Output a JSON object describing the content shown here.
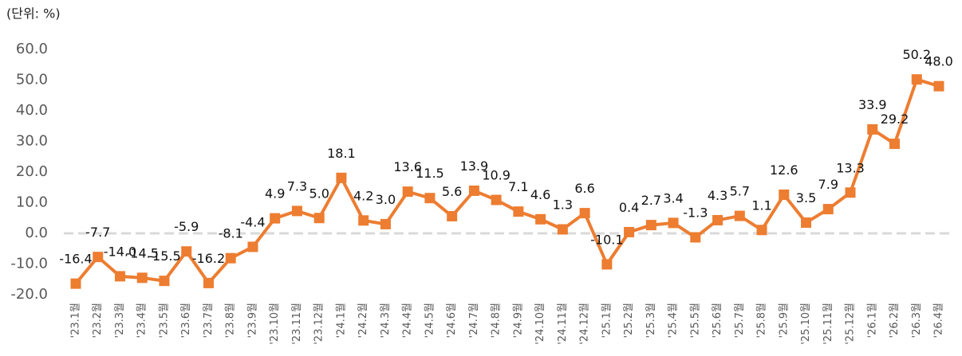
{
  "chart_data": {
    "type": "line",
    "unit_label": "(단위: %)",
    "categories": [
      "'23.1월",
      "'23.2월",
      "'23.3월",
      "'23.4월",
      "'23.5월",
      "'23.6월",
      "'23.7월",
      "'23.8월",
      "'23.9월",
      "'23.10월",
      "'23.11월",
      "'23.12월",
      "'24.1월",
      "'24.2월",
      "'24.3월",
      "'24.4월",
      "'24.5월",
      "'24.6월",
      "'24.7월",
      "'24.8월",
      "'24.9월",
      "'24.10월",
      "'24.11월",
      "'24.12월",
      "'25.1월",
      "'25.2월",
      "'25.3월",
      "'25.4월",
      "'25.5월",
      "'25.6월",
      "'25.7월",
      "'25.8월",
      "'25.9월",
      "'25.10월",
      "'25.11월",
      "'25.12월",
      "'26.1월",
      "'26.2월",
      "'26.3월",
      "'26.4월"
    ],
    "values": [
      -16.4,
      -7.7,
      -14.0,
      -14.5,
      -15.5,
      -5.9,
      -16.2,
      -8.1,
      -4.4,
      4.9,
      7.3,
      5.0,
      18.1,
      4.2,
      3.0,
      13.6,
      11.5,
      5.6,
      13.9,
      10.9,
      7.1,
      4.6,
      1.3,
      6.6,
      -10.1,
      0.4,
      2.7,
      3.4,
      -1.3,
      4.3,
      5.7,
      1.1,
      12.6,
      3.5,
      7.9,
      13.3,
      33.9,
      29.2,
      50.2,
      48.0
    ],
    "value_labels": [
      "-16.4",
      "-7.7",
      "-14.0",
      "-14.5",
      "-15.5",
      "-5.9",
      "-16.2",
      "-8.1",
      "-4.4",
      "4.9",
      "7.3",
      "5.0",
      "18.1",
      "4.2",
      "3.0",
      "13.6",
      "11.5",
      "5.6",
      "13.9",
      "10.9",
      "7.1",
      "4.6",
      "1.3",
      "6.6",
      "-10.1",
      "0.4",
      "2.7",
      "3.4",
      "-1.3",
      "4.3",
      "5.7",
      "1.1",
      "12.6",
      "3.5",
      "7.9",
      "13.3",
      "33.9",
      "29.2",
      "50.2",
      "48.0"
    ],
    "color": "#ed7d31",
    "ylim": [
      -20,
      60
    ],
    "yticks": [
      {
        "value": -20,
        "label": "-20.0"
      },
      {
        "value": -10,
        "label": "-10.0"
      },
      {
        "value": 0,
        "label": "0.0"
      },
      {
        "value": 10,
        "label": "10.0"
      },
      {
        "value": 20,
        "label": "20.0"
      },
      {
        "value": 30,
        "label": "30.0"
      },
      {
        "value": 40,
        "label": "40.0"
      },
      {
        "value": 50,
        "label": "50.0"
      },
      {
        "value": 60,
        "label": "60.0"
      }
    ]
  }
}
